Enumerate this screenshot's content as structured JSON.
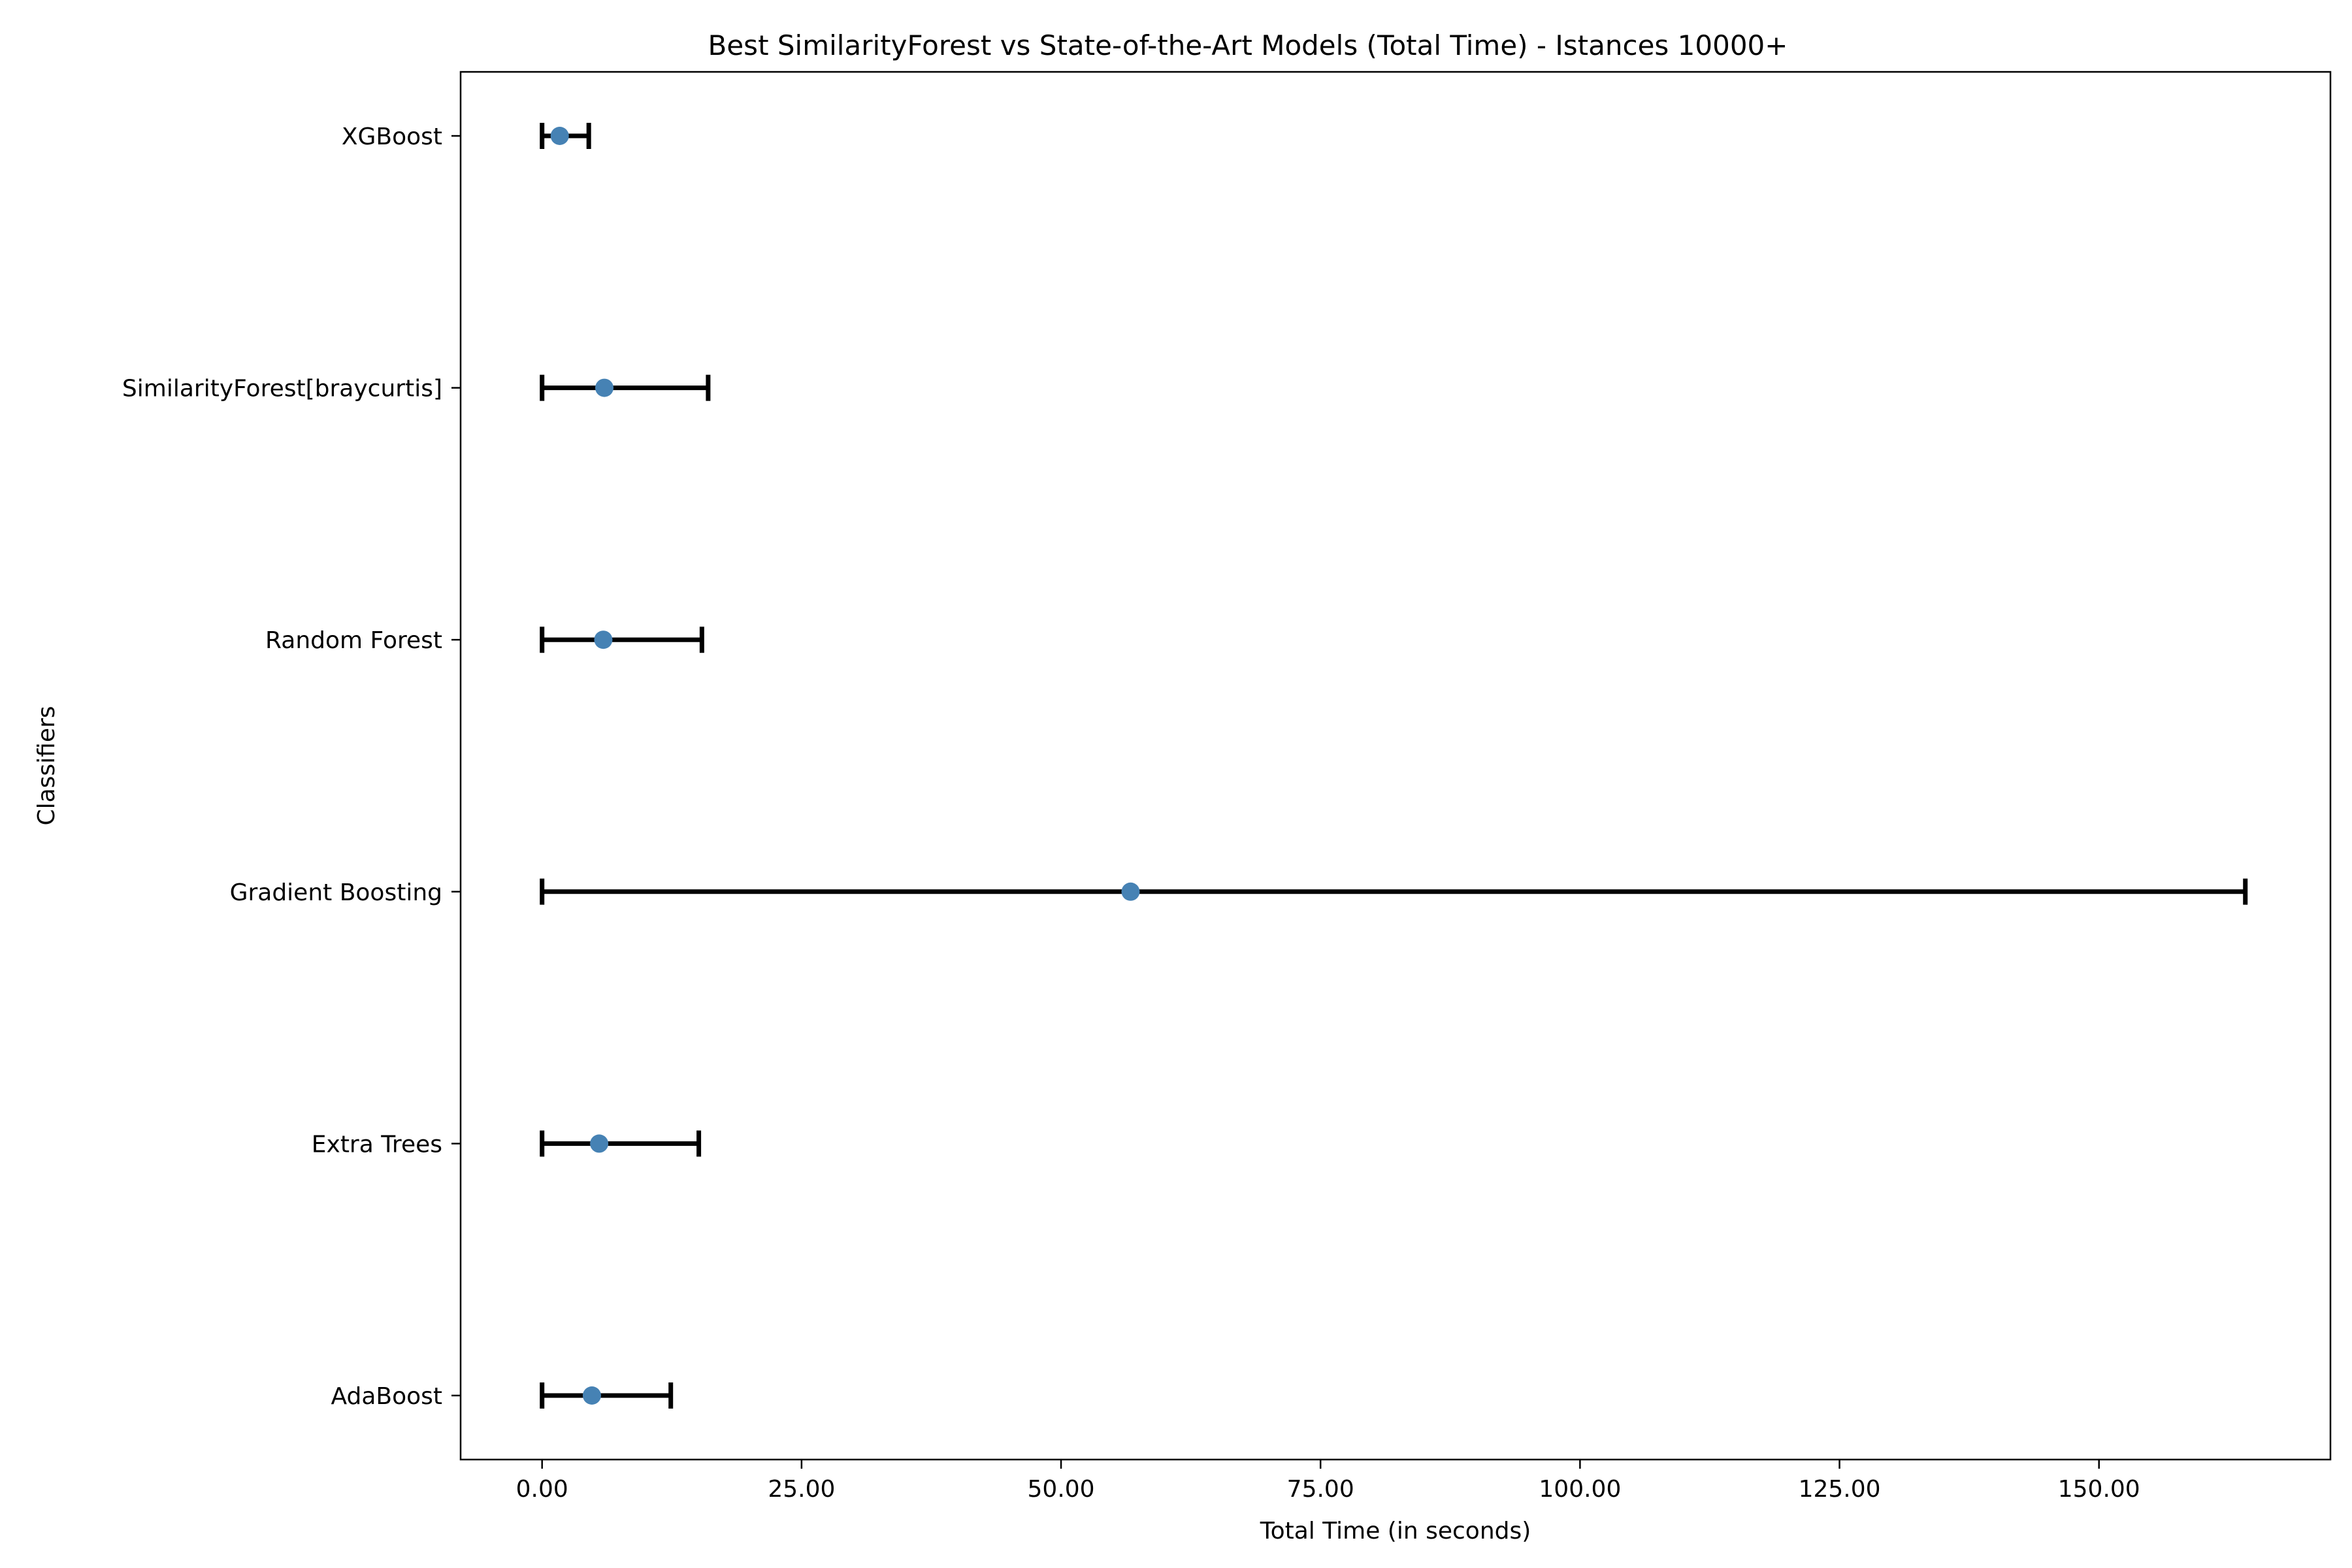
{
  "chart_data": {
    "type": "errorbar",
    "title": "Best SimilarityForest vs State-of-the-Art Models (Total Time) - Istances 10000+",
    "xlabel": "Total Time (in seconds)",
    "ylabel": "Classifiers",
    "xlim": [
      -7.85,
      172.3
    ],
    "xticks": [
      0,
      25,
      50,
      75,
      100,
      125,
      150
    ],
    "xtick_labels": [
      "0.00",
      "25.00",
      "50.00",
      "75.00",
      "100.00",
      "125.00",
      "150.00"
    ],
    "grid": false,
    "legend": "none",
    "marker_color": "#4682b4",
    "errorbar_color": "#000000",
    "categories": [
      "AdaBoost",
      "Extra Trees",
      "Gradient Boosting",
      "Random Forest",
      "SimilarityForest[braycurtis]",
      "XGBoost"
    ],
    "values": [
      4.8,
      5.5,
      56.7,
      5.9,
      6.0,
      1.7
    ],
    "lower": [
      0.0,
      0.0,
      0.0,
      0.0,
      0.0,
      0.0
    ],
    "upper": [
      12.4,
      15.1,
      164.1,
      15.4,
      16.0,
      4.5
    ]
  }
}
